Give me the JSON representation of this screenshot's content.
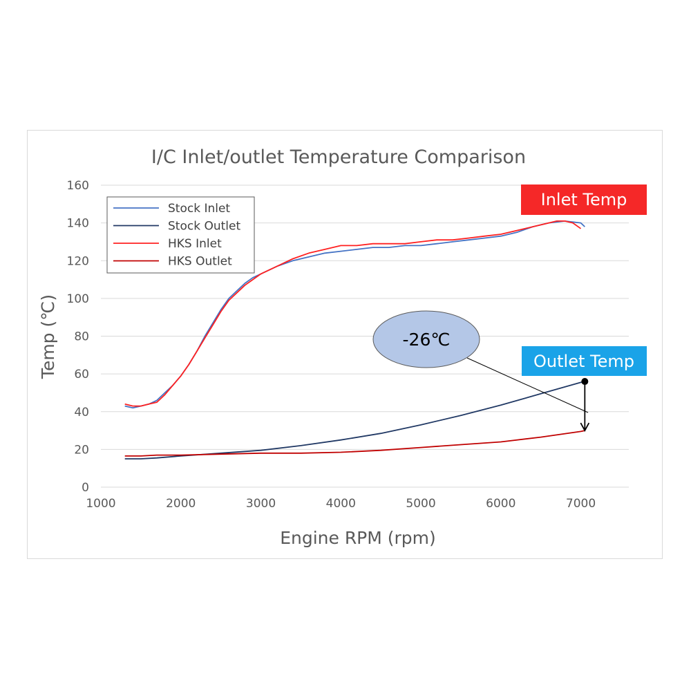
{
  "chart_data": {
    "type": "line",
    "title": "I/C Inlet/outlet Temperature Comparison",
    "xlabel": "Engine RPM (rpm)",
    "ylabel": "Temp (℃)",
    "xlim": [
      1000,
      7600
    ],
    "ylim": [
      0,
      160
    ],
    "xticks": [
      1000,
      2000,
      3000,
      4000,
      5000,
      6000,
      7000
    ],
    "yticks": [
      0,
      20,
      40,
      60,
      80,
      100,
      120,
      140,
      160
    ],
    "grid": true,
    "legend_position": "top-left",
    "series": [
      {
        "name": "Stock Inlet",
        "color": "#4472c4",
        "x": [
          1300,
          1400,
          1500,
          1600,
          1700,
          1800,
          1900,
          2000,
          2100,
          2200,
          2300,
          2400,
          2500,
          2600,
          2700,
          2800,
          2900,
          3000,
          3200,
          3400,
          3600,
          3800,
          4000,
          4200,
          4400,
          4600,
          4800,
          5000,
          5200,
          5400,
          5600,
          5800,
          6000,
          6200,
          6400,
          6600,
          6800,
          7000,
          7050
        ],
        "y": [
          43,
          42,
          43,
          44,
          46,
          50,
          54,
          59,
          65,
          72,
          80,
          87,
          94,
          100,
          104,
          108,
          111,
          113,
          117,
          120,
          122,
          124,
          125,
          126,
          127,
          127,
          128,
          128,
          129,
          130,
          131,
          132,
          133,
          135,
          138,
          140,
          141,
          140,
          138
        ]
      },
      {
        "name": "Stock Outlet",
        "color": "#203864",
        "x": [
          1300,
          1500,
          1700,
          2000,
          2500,
          3000,
          3500,
          4000,
          4500,
          5000,
          5500,
          6000,
          6500,
          7000,
          7050
        ],
        "y": [
          15,
          15,
          15.5,
          16.5,
          18,
          19.5,
          22,
          25,
          28.5,
          33,
          38,
          43.5,
          49.5,
          55.5,
          56
        ]
      },
      {
        "name": "HKS Inlet",
        "color": "#ff2020",
        "x": [
          1300,
          1400,
          1500,
          1600,
          1700,
          1800,
          1900,
          2000,
          2100,
          2200,
          2300,
          2400,
          2500,
          2600,
          2700,
          2800,
          2900,
          3000,
          3200,
          3400,
          3600,
          3800,
          4000,
          4200,
          4400,
          4600,
          4800,
          5000,
          5200,
          5400,
          5600,
          5800,
          6000,
          6200,
          6400,
          6600,
          6700,
          6800,
          6900,
          7000
        ],
        "y": [
          44,
          43,
          43,
          44,
          45,
          49,
          54,
          59,
          65,
          72,
          79,
          86,
          93,
          99,
          103,
          107,
          110,
          113,
          117,
          121,
          124,
          126,
          128,
          128,
          129,
          129,
          129,
          130,
          131,
          131,
          132,
          133,
          134,
          136,
          138,
          140,
          141,
          141,
          140,
          137
        ]
      },
      {
        "name": "HKS Outlet",
        "color": "#c00000",
        "x": [
          1300,
          1500,
          1700,
          2000,
          2500,
          3000,
          3500,
          4000,
          4500,
          5000,
          5500,
          6000,
          6500,
          7000,
          7050
        ],
        "y": [
          16.5,
          16.5,
          17,
          17,
          17.5,
          18,
          18,
          18.5,
          19.5,
          21,
          22.5,
          24,
          26.5,
          29.5,
          30
        ]
      }
    ],
    "annotations": {
      "inlet_tag": {
        "text": "Inlet Temp",
        "color": "#f52828"
      },
      "outlet_tag": {
        "text": "Outlet Temp",
        "color": "#1aa3e8"
      },
      "difference_callout": {
        "text": "-26℃",
        "fill": "#b4c7e7",
        "x": 7050,
        "y_from": 56,
        "y_to": 30
      }
    }
  }
}
